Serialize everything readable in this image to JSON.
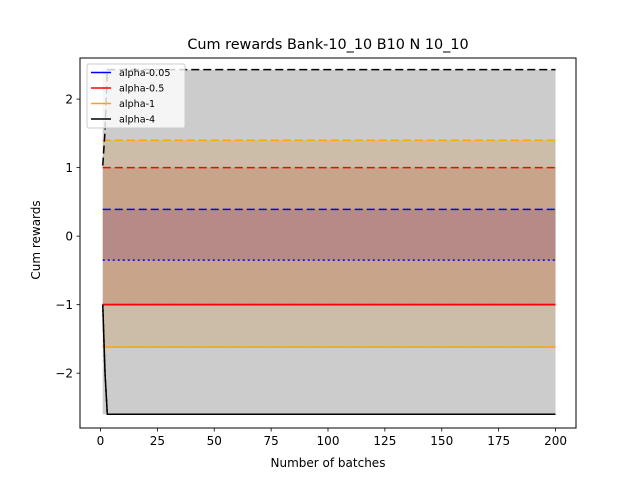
{
  "chart_data": {
    "type": "line",
    "title": "Cum rewards Bank-10_10 B10 N 10_10",
    "xlabel": "Number of batches",
    "ylabel": "Cum rewards",
    "xlim": [
      -9,
      209
    ],
    "ylim": [
      -2.8,
      2.6
    ],
    "xticks": [
      0,
      25,
      50,
      75,
      100,
      125,
      150,
      175,
      200
    ],
    "yticks": [
      -2,
      -1,
      0,
      1,
      2
    ],
    "ytick_labels": [
      "−2",
      "−1",
      "0",
      "1",
      "2"
    ],
    "legend_position": "upper-left",
    "bands": [
      {
        "name": "alpha-4",
        "lower": -2.6,
        "upper": 2.43,
        "color": "#808080",
        "opacity": 0.4
      },
      {
        "name": "alpha-1",
        "lower": -1.62,
        "upper": 1.4,
        "color": "#c8a065",
        "opacity": 0.35
      },
      {
        "name": "alpha-0.5",
        "lower": -1.0,
        "upper": 1.0,
        "color": "#c06030",
        "opacity": 0.25
      },
      {
        "name": "alpha-0.05",
        "lower": -0.35,
        "upper": 0.39,
        "color": "#7a3a80",
        "opacity": 0.25
      }
    ],
    "series": [
      {
        "name": "alpha-0.05",
        "color": "#0000ff",
        "x": [
          1,
          200
        ],
        "mean": [
          -1.0,
          -1.0
        ],
        "upper": [
          0.39,
          0.39
        ],
        "lower": [
          -0.35,
          -0.35
        ]
      },
      {
        "name": "alpha-0.5",
        "color": "#ff0000",
        "x": [
          1,
          200
        ],
        "mean": [
          -1.0,
          -1.0
        ],
        "upper": [
          1.0,
          1.0
        ],
        "lower": [
          -1.0,
          -1.0
        ]
      },
      {
        "name": "alpha-1",
        "color": "#ffa500",
        "x": [
          1,
          200
        ],
        "mean": [
          -1.62,
          -1.62
        ],
        "upper": [
          1.4,
          1.4
        ],
        "lower": [
          -1.62,
          -1.62
        ]
      },
      {
        "name": "alpha-4",
        "color": "#000000",
        "x": [
          1,
          2,
          3,
          200
        ],
        "mean": [
          -1.0,
          -2.0,
          -2.6,
          -2.6
        ],
        "upper": [
          1.03,
          1.53,
          2.43,
          2.43
        ],
        "lower": [
          -1.0,
          -2.0,
          -2.6,
          -2.6
        ]
      }
    ]
  }
}
